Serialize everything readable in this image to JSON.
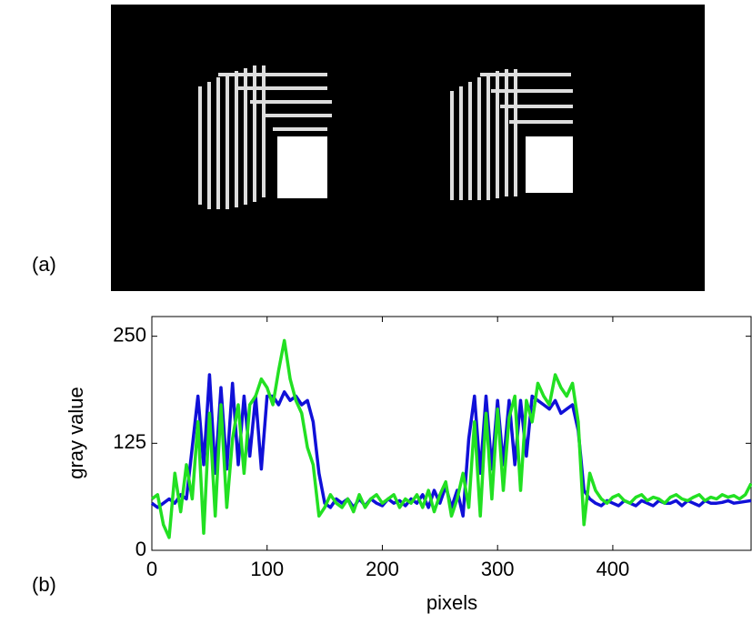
{
  "panel_labels": [
    "(a)",
    "(b)"
  ],
  "chart_data": {
    "type": "line",
    "ylabel": "gray value",
    "xlabel": "pixels",
    "xlim": [
      0,
      520
    ],
    "xticks": [
      0,
      100,
      200,
      300,
      400
    ],
    "ylim": [
      0,
      273
    ],
    "yticks": [
      0,
      125,
      250
    ],
    "x": [
      0,
      5,
      10,
      15,
      20,
      25,
      30,
      35,
      40,
      45,
      50,
      55,
      60,
      65,
      70,
      75,
      80,
      85,
      90,
      95,
      100,
      105,
      110,
      115,
      120,
      125,
      130,
      135,
      140,
      145,
      150,
      155,
      160,
      165,
      170,
      175,
      180,
      185,
      190,
      195,
      200,
      205,
      210,
      215,
      220,
      225,
      230,
      235,
      240,
      245,
      250,
      255,
      260,
      265,
      270,
      275,
      280,
      285,
      290,
      295,
      300,
      305,
      310,
      315,
      320,
      325,
      330,
      335,
      340,
      345,
      350,
      355,
      360,
      365,
      370,
      375,
      380,
      385,
      390,
      395,
      400,
      405,
      410,
      415,
      420,
      425,
      430,
      435,
      440,
      445,
      450,
      455,
      460,
      465,
      470,
      475,
      480,
      485,
      490,
      495,
      500,
      505,
      510,
      515,
      520
    ],
    "series": [
      {
        "color": "#1010d8",
        "values": [
          55,
          50,
          55,
          60,
          55,
          65,
          60,
          120,
          180,
          100,
          205,
          90,
          190,
          95,
          195,
          100,
          180,
          110,
          180,
          95,
          180,
          180,
          170,
          185,
          175,
          180,
          170,
          175,
          150,
          90,
          55,
          50,
          60,
          55,
          60,
          50,
          60,
          52,
          60,
          55,
          52,
          60,
          55,
          58,
          52,
          60,
          55,
          65,
          50,
          70,
          55,
          75,
          50,
          70,
          40,
          130,
          180,
          90,
          180,
          95,
          175,
          100,
          175,
          100,
          175,
          110,
          180,
          175,
          170,
          165,
          175,
          160,
          165,
          170,
          140,
          70,
          60,
          55,
          52,
          58,
          55,
          52,
          58,
          55,
          52,
          58,
          55,
          52,
          58,
          55,
          55,
          58,
          52,
          58,
          55,
          52,
          58,
          55,
          55,
          56,
          58,
          55,
          56,
          57,
          58
        ]
      },
      {
        "color": "#22e022",
        "values": [
          60,
          65,
          30,
          15,
          90,
          45,
          100,
          60,
          150,
          20,
          160,
          40,
          170,
          50,
          130,
          170,
          90,
          170,
          180,
          200,
          190,
          170,
          210,
          245,
          200,
          175,
          160,
          120,
          100,
          40,
          50,
          65,
          55,
          50,
          60,
          45,
          65,
          50,
          60,
          65,
          55,
          60,
          65,
          50,
          60,
          55,
          65,
          50,
          70,
          45,
          65,
          80,
          40,
          60,
          90,
          50,
          150,
          40,
          160,
          60,
          165,
          70,
          155,
          180,
          70,
          175,
          150,
          195,
          180,
          170,
          205,
          190,
          180,
          195,
          150,
          30,
          90,
          70,
          60,
          55,
          62,
          65,
          58,
          55,
          62,
          65,
          58,
          62,
          60,
          55,
          62,
          65,
          60,
          58,
          62,
          65,
          58,
          62,
          60,
          65,
          62,
          64,
          60,
          65,
          78
        ]
      }
    ]
  }
}
